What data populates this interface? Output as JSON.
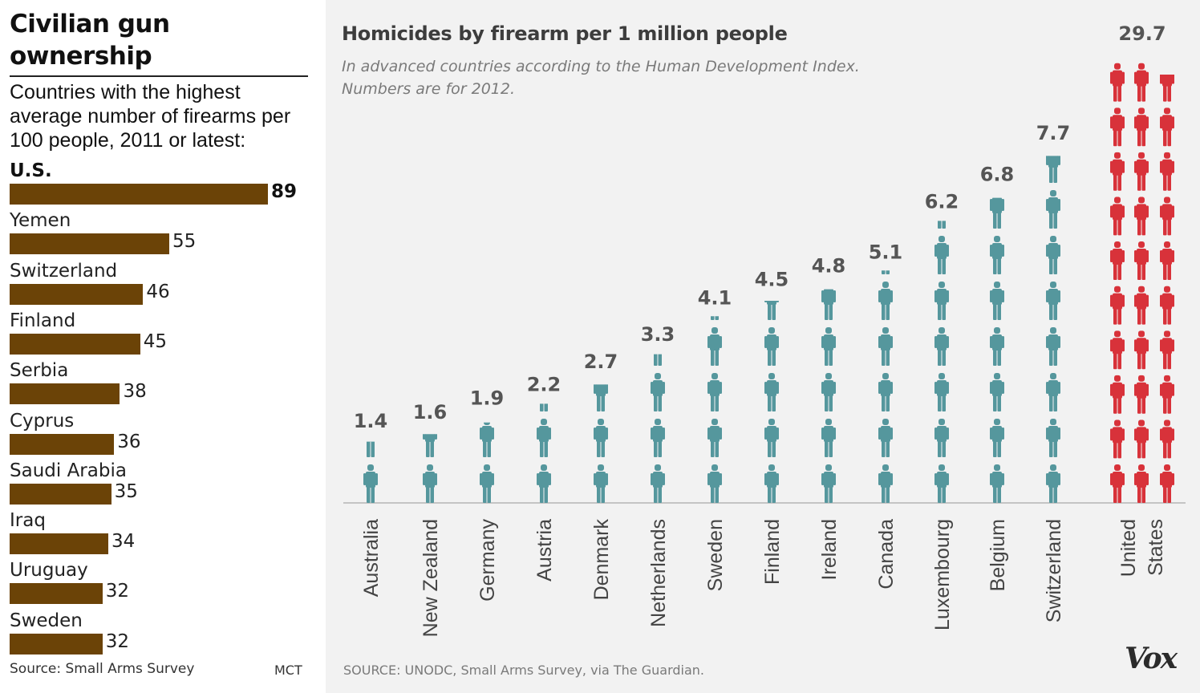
{
  "left_panel": {
    "title": "Civilian gun ownership",
    "subtitle": "Countries with the highest average number of firearms per 100 people, 2011 or latest:",
    "source": "Source: Small Arms Survey",
    "credit": "MCT",
    "bar_color": "#6b4307"
  },
  "right_panel": {
    "title": "Homicides by firearm per 1 million people",
    "subtitle": "In advanced countries according to the Human Development Index. Numbers are for 2012.",
    "source": "SOURCE: UNODC, Small Arms Survey, via The Guardian.",
    "logo": "Vox",
    "colors": {
      "figure": "#55979d",
      "highlight": "#d8323a",
      "axis": "#c4c4c4",
      "value_text": "#555555"
    }
  },
  "chart_data": [
    {
      "type": "bar",
      "orientation": "horizontal",
      "title": "Civilian gun ownership",
      "subtitle": "Countries with the highest average number of firearms per 100 people, 2011 or latest:",
      "categories": [
        "U.S.",
        "Yemen",
        "Switzerland",
        "Finland",
        "Serbia",
        "Cyprus",
        "Saudi Arabia",
        "Iraq",
        "Uruguay",
        "Sweden"
      ],
      "values": [
        89,
        55,
        46,
        45,
        38,
        36,
        35,
        34,
        32,
        32
      ],
      "highlight": "U.S.",
      "xlim": [
        0,
        100
      ],
      "grid": false,
      "legend": "none"
    },
    {
      "type": "bar",
      "style": "pictogram",
      "title": "Homicides by firearm per 1 million people",
      "subtitle": "In advanced countries according to the Human Development Index. Numbers are for 2012.",
      "categories": [
        "Australia",
        "New Zealand",
        "Germany",
        "Austria",
        "Denmark",
        "Netherlands",
        "Sweden",
        "Finland",
        "Ireland",
        "Canada",
        "Luxembourg",
        "Belgium",
        "Switzerland",
        "United States"
      ],
      "values": [
        1.4,
        1.6,
        1.9,
        2.2,
        2.7,
        3.3,
        4.1,
        4.5,
        4.8,
        5.1,
        6.2,
        6.8,
        7.7,
        29.7
      ],
      "value_labels": [
        "1.4",
        "1.6",
        "1.9",
        "2.2",
        "2.7",
        "3.3",
        "4.1",
        "4.5",
        "4.8",
        "5.1",
        "6.2",
        "6.8",
        "7.7",
        "29.7"
      ],
      "units_per_figure": 1,
      "highlight": "United States",
      "grid": false,
      "legend": "none"
    }
  ]
}
